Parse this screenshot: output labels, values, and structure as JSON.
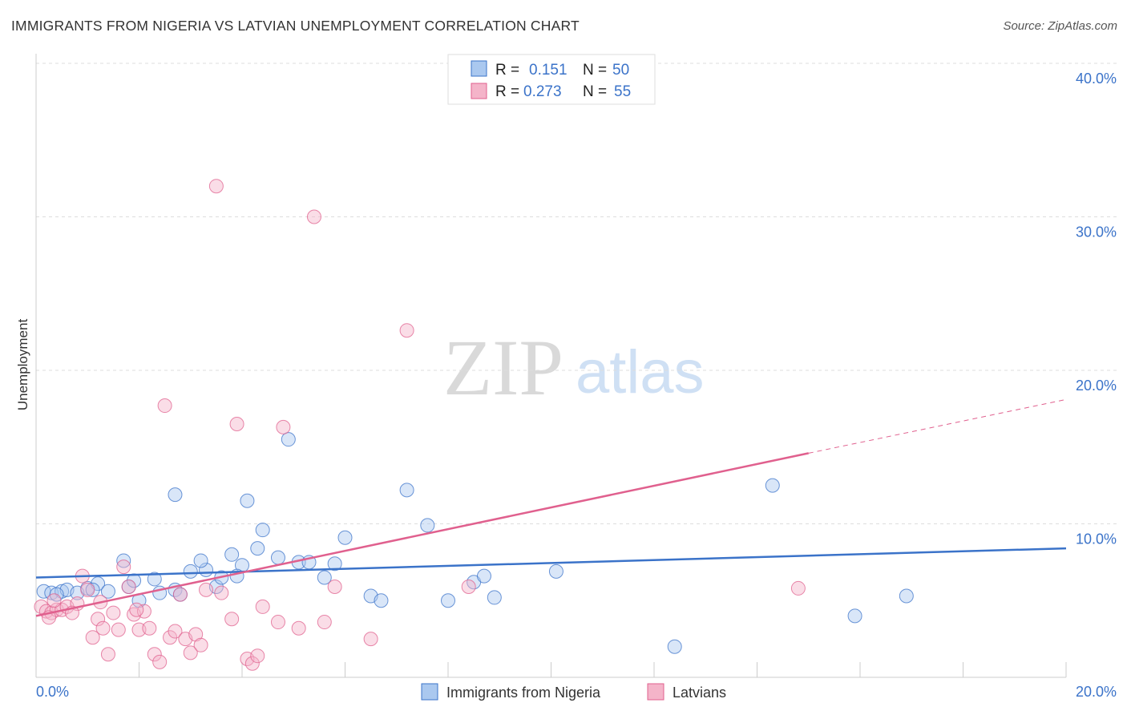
{
  "title": "IMMIGRANTS FROM NIGERIA VS LATVIAN UNEMPLOYMENT CORRELATION CHART",
  "source": "Source: ZipAtlas.com",
  "watermark": {
    "part1": "ZIP",
    "part2": "atlas"
  },
  "colors": {
    "blue": "#3b73c9",
    "blue_fill": "#aac8ef",
    "pink": "#e0608e",
    "pink_fill": "#f4b4c9",
    "grid": "#dddddd",
    "axis_text": "#3b73c9"
  },
  "legend": {
    "r_label": "R =",
    "n_label": "N =",
    "rows": [
      {
        "r": "0.151",
        "n": "50",
        "color": "blue"
      },
      {
        "r": "0.273",
        "n": "55",
        "color": "pink"
      }
    ]
  },
  "bottom_legend": [
    "Immigrants from Nigeria",
    "Latvians"
  ],
  "chart_data": {
    "type": "scatter",
    "title": "IMMIGRANTS FROM NIGERIA VS LATVIAN UNEMPLOYMENT CORRELATION CHART",
    "xlabel": "",
    "ylabel": "Unemployment",
    "xlim": [
      0,
      20
    ],
    "ylim": [
      0,
      40
    ],
    "x_tick_labels": [
      "0.0%",
      "20.0%"
    ],
    "y_ticks": [
      10,
      20,
      30,
      40
    ],
    "y_tick_labels": [
      "10.0%",
      "20.0%",
      "30.0%",
      "40.0%"
    ],
    "grid": true,
    "legend_position": "top-center",
    "series": [
      {
        "name": "Immigrants from Nigeria",
        "color": "#3b73c9",
        "r": 0.151,
        "n": 50,
        "trend": {
          "x0": 0,
          "y0": 6.5,
          "x1": 20,
          "y1": 8.4
        },
        "points": [
          [
            0.15,
            5.6
          ],
          [
            0.3,
            5.5
          ],
          [
            0.5,
            5.6
          ],
          [
            0.6,
            5.7
          ],
          [
            0.8,
            5.5
          ],
          [
            1.0,
            5.8
          ],
          [
            1.2,
            6.1
          ],
          [
            1.4,
            5.6
          ],
          [
            1.7,
            7.6
          ],
          [
            1.8,
            5.9
          ],
          [
            2.0,
            5.0
          ],
          [
            1.9,
            6.3
          ],
          [
            2.3,
            6.4
          ],
          [
            2.4,
            5.5
          ],
          [
            2.7,
            5.7
          ],
          [
            2.8,
            5.4
          ],
          [
            3.0,
            6.9
          ],
          [
            3.3,
            7.0
          ],
          [
            3.2,
            7.6
          ],
          [
            3.5,
            5.9
          ],
          [
            3.6,
            6.5
          ],
          [
            3.8,
            8.0
          ],
          [
            4.0,
            7.3
          ],
          [
            4.1,
            11.5
          ],
          [
            4.3,
            8.4
          ],
          [
            4.4,
            9.6
          ],
          [
            4.7,
            7.8
          ],
          [
            4.9,
            15.5
          ],
          [
            5.1,
            7.5
          ],
          [
            5.3,
            7.5
          ],
          [
            5.6,
            6.5
          ],
          [
            5.8,
            7.4
          ],
          [
            6.0,
            9.1
          ],
          [
            6.5,
            5.3
          ],
          [
            6.7,
            5.0
          ],
          [
            7.2,
            12.2
          ],
          [
            7.6,
            9.9
          ],
          [
            8.0,
            5.0
          ],
          [
            8.5,
            6.2
          ],
          [
            8.7,
            6.6
          ],
          [
            8.9,
            5.2
          ],
          [
            10.1,
            6.9
          ],
          [
            12.4,
            2.0
          ],
          [
            14.3,
            12.5
          ],
          [
            15.9,
            4.0
          ],
          [
            16.9,
            5.3
          ],
          [
            2.7,
            11.9
          ],
          [
            0.4,
            5.4
          ],
          [
            1.1,
            5.7
          ],
          [
            3.9,
            6.6
          ]
        ]
      },
      {
        "name": "Latvians",
        "color": "#e0608e",
        "r": 0.273,
        "n": 55,
        "trend": {
          "x0": 0,
          "y0": 4.0,
          "x1": 15.0,
          "y1": 14.6
        },
        "trend_dashed": {
          "x0": 15.0,
          "y0": 14.6,
          "x1": 20,
          "y1": 18.1
        },
        "points": [
          [
            0.1,
            4.6
          ],
          [
            0.2,
            4.3
          ],
          [
            0.3,
            4.2
          ],
          [
            0.4,
            4.4
          ],
          [
            0.5,
            4.4
          ],
          [
            0.6,
            4.6
          ],
          [
            0.8,
            4.8
          ],
          [
            0.9,
            6.6
          ],
          [
            1.0,
            5.7
          ],
          [
            1.1,
            2.6
          ],
          [
            1.2,
            3.8
          ],
          [
            1.3,
            3.2
          ],
          [
            1.4,
            1.5
          ],
          [
            1.5,
            4.2
          ],
          [
            1.6,
            3.1
          ],
          [
            1.7,
            7.2
          ],
          [
            1.8,
            5.9
          ],
          [
            1.9,
            4.1
          ],
          [
            2.0,
            3.1
          ],
          [
            2.1,
            4.3
          ],
          [
            2.2,
            3.2
          ],
          [
            2.3,
            1.5
          ],
          [
            2.4,
            1.0
          ],
          [
            2.5,
            17.7
          ],
          [
            2.6,
            2.6
          ],
          [
            2.7,
            3.0
          ],
          [
            2.8,
            5.4
          ],
          [
            2.9,
            2.5
          ],
          [
            3.0,
            1.6
          ],
          [
            3.1,
            2.8
          ],
          [
            3.2,
            2.1
          ],
          [
            3.3,
            5.7
          ],
          [
            3.5,
            32.0
          ],
          [
            3.6,
            5.5
          ],
          [
            3.8,
            3.8
          ],
          [
            3.9,
            16.5
          ],
          [
            4.1,
            1.2
          ],
          [
            4.2,
            0.9
          ],
          [
            4.3,
            1.4
          ],
          [
            4.4,
            4.6
          ],
          [
            4.7,
            3.6
          ],
          [
            4.8,
            16.3
          ],
          [
            5.1,
            3.2
          ],
          [
            5.4,
            30.0
          ],
          [
            5.6,
            3.6
          ],
          [
            5.8,
            5.9
          ],
          [
            6.5,
            2.5
          ],
          [
            7.2,
            22.6
          ],
          [
            8.4,
            5.9
          ],
          [
            14.8,
            5.8
          ],
          [
            0.35,
            5.0
          ],
          [
            0.7,
            4.2
          ],
          [
            1.25,
            4.9
          ],
          [
            1.95,
            4.4
          ],
          [
            0.25,
            3.9
          ]
        ]
      }
    ]
  }
}
